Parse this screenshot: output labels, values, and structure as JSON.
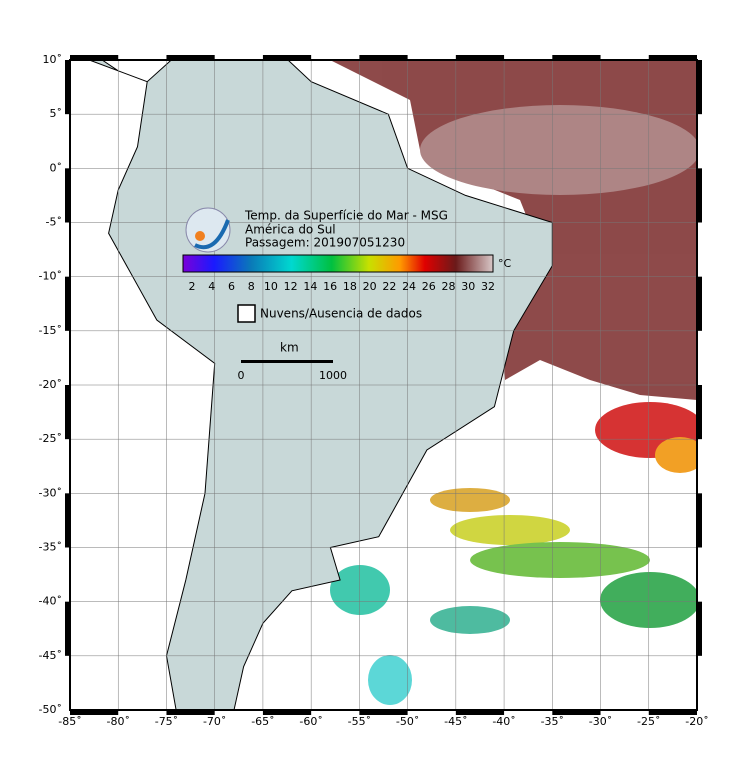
{
  "map": {
    "title": "Temp. da Superfície do Mar - MSG",
    "region": "América do Sul",
    "pass": "Passagem: 201907051230",
    "colorbar": {
      "unit": "°C",
      "labels": [
        "2",
        "4",
        "6",
        "8",
        "10",
        "12",
        "14",
        "16",
        "18",
        "20",
        "22",
        "24",
        "26",
        "28",
        "30",
        "32"
      ]
    },
    "legend": "Nuvens/Ausencia de dados",
    "scale": {
      "unit": "km",
      "labels": [
        "0",
        "1000"
      ]
    },
    "lon_labels": [
      "-85˚",
      "-80˚",
      "-75˚",
      "-70˚",
      "-65˚",
      "-60˚",
      "-55˚",
      "-50˚",
      "-45˚",
      "-40˚",
      "-35˚",
      "-30˚",
      "-25˚",
      "-20˚"
    ],
    "lat_labels": [
      "10˚",
      "5˚",
      "0˚",
      "-5˚",
      "-10˚",
      "-15˚",
      "-20˚",
      "-25˚",
      "-30˚",
      "-35˚",
      "-40˚",
      "-45˚",
      "-50˚"
    ]
  }
}
